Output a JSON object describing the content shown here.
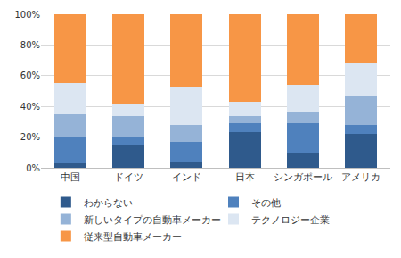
{
  "chart_data": {
    "type": "bar",
    "stacked": true,
    "categories": [
      "中国",
      "ドイツ",
      "インド",
      "日本",
      "シンガポール",
      "アメリカ"
    ],
    "series": [
      {
        "name": "わからない",
        "color": "#2f5a8c",
        "values": [
          3,
          15,
          4,
          23,
          10,
          22
        ]
      },
      {
        "name": "その他",
        "color": "#4f81bd",
        "values": [
          17,
          5,
          13,
          6,
          19,
          6
        ]
      },
      {
        "name": "新しいタイプの自動車メーカー",
        "color": "#95b3d7",
        "values": [
          15,
          14,
          11,
          5,
          7,
          19
        ]
      },
      {
        "name": "テクノロジー企業",
        "color": "#dce6f2",
        "values": [
          20,
          7,
          25,
          9,
          18,
          21
        ]
      },
      {
        "name": "従来型自動車メーカー",
        "color": "#f79646",
        "values": [
          45,
          59,
          47,
          57,
          46,
          32
        ]
      }
    ],
    "ylim": [
      0,
      100
    ],
    "yticks": [
      {
        "value": 0,
        "label": "0%"
      },
      {
        "value": 20,
        "label": "20%"
      },
      {
        "value": 40,
        "label": "40%"
      },
      {
        "value": 60,
        "label": "60%"
      },
      {
        "value": 80,
        "label": "80%"
      },
      {
        "value": 100,
        "label": "100%"
      }
    ],
    "grid": true,
    "legend": "bottom"
  }
}
